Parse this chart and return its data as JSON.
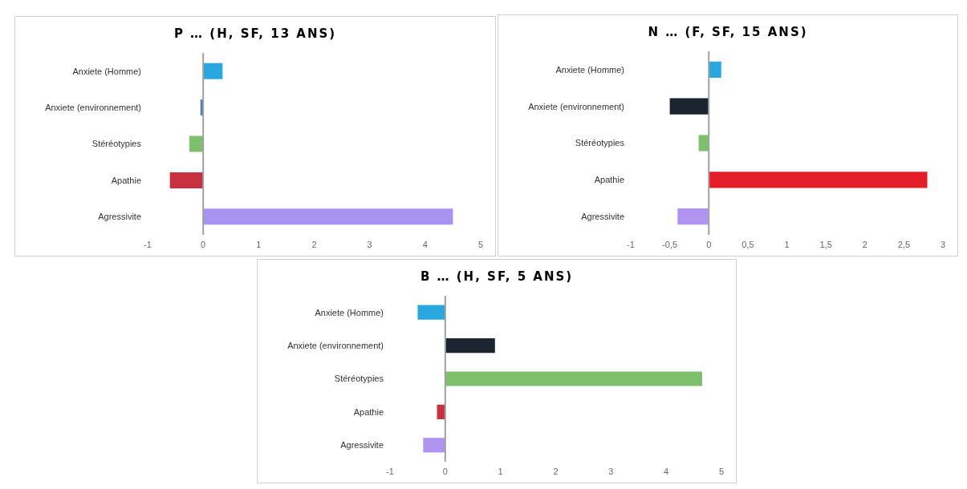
{
  "chart_data": [
    {
      "type": "bar",
      "orientation": "horizontal",
      "title": "P … (H, SF, 13 ANS)",
      "categories": [
        "Anxiete (Homme)",
        "Anxiete (environnement)",
        "Stéréotypies",
        "Apathie",
        "Agressivite"
      ],
      "values": [
        0.35,
        -0.05,
        -0.25,
        -0.6,
        4.5
      ],
      "colors": [
        "#29a8e0",
        "#4a7ebb",
        "#7dbf6a",
        "#c8313f",
        "#a894f0"
      ],
      "xlim": [
        -1,
        5
      ],
      "xticks": [
        -1,
        0,
        1,
        2,
        3,
        4,
        5
      ]
    },
    {
      "type": "bar",
      "orientation": "horizontal",
      "title": "N … (F, SF, 15 ANS)",
      "categories": [
        "Anxiete (Homme)",
        "Anxiete (environnement)",
        "Stéréotypies",
        "Apathie",
        "Agressivite"
      ],
      "values": [
        0.16,
        -0.5,
        -0.13,
        2.8,
        -0.4
      ],
      "colors": [
        "#29a8e0",
        "#1a2530",
        "#7dbf6a",
        "#e31e28",
        "#b094f0"
      ],
      "xlim": [
        -1,
        3
      ],
      "xticks": [
        -1,
        {
          "value": -0.5,
          "label": "-0,5"
        },
        0,
        {
          "value": 0.5,
          "label": "0,5"
        },
        1,
        {
          "value": 1.5,
          "label": "1,5"
        },
        2,
        {
          "value": 2.5,
          "label": "2,5"
        },
        3
      ]
    },
    {
      "type": "bar",
      "orientation": "horizontal",
      "title": "B … (H, SF, 5 ANS)",
      "categories": [
        "Anxiete (Homme)",
        "Anxiete (environnement)",
        "Stéréotypies",
        "Apathie",
        "Agressivite"
      ],
      "values": [
        -0.5,
        0.9,
        4.65,
        -0.15,
        -0.4
      ],
      "colors": [
        "#29a8e0",
        "#1a2530",
        "#7dbf6a",
        "#c8313f",
        "#b094f0"
      ],
      "xlim": [
        -1,
        5
      ],
      "xticks": [
        -1,
        0,
        1,
        2,
        3,
        4,
        5
      ]
    }
  ]
}
